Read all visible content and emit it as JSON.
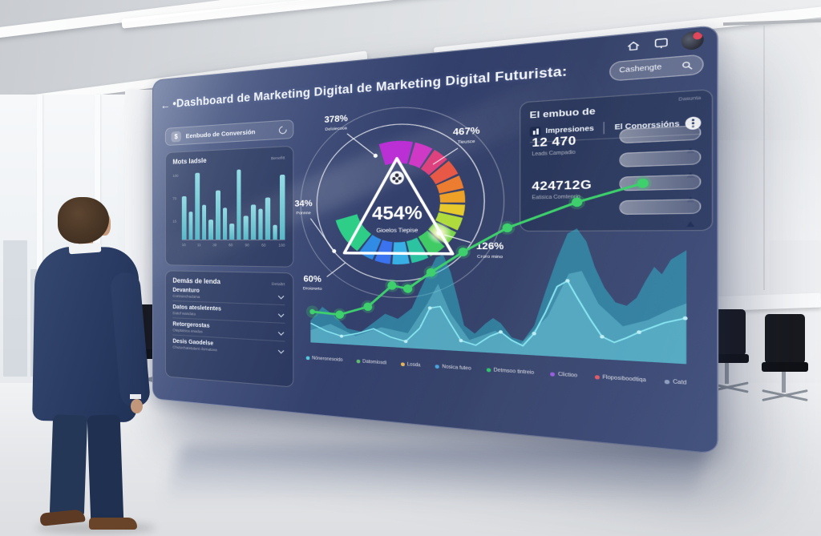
{
  "panel": {
    "topbar": {
      "back_glyph": "←",
      "title": "•Dashboard de Marketing Digital de Marketing Digital Futurista:",
      "search": {
        "value": "Cashengte"
      }
    },
    "left": {
      "funnel_button": {
        "icon_glyph": "$",
        "label": "Eenbudo de Conversión"
      },
      "bar_card": {
        "title": "Mots ladsle",
        "meta": "Benefitt",
        "y_ticks": [
          "100",
          "70",
          "15"
        ],
        "x_ticks": [
          "10",
          "11",
          "30",
          "60",
          "90",
          "60",
          "100"
        ],
        "values": [
          62,
          40,
          95,
          50,
          28,
          70,
          45,
          22,
          98,
          33,
          48,
          42,
          58,
          20,
          88
        ],
        "bar_color": "#74d4dc"
      },
      "list_card": {
        "title": "Demás de lenda",
        "meta": "Detaltrt",
        "items": [
          {
            "label": "Devanturo",
            "sub": "Contranchodoma"
          },
          {
            "label": "Datos atesletentes",
            "sub": "Datof wandata"
          },
          {
            "label": "Retorgerostas",
            "sub": "Oteptatsca enadas"
          },
          {
            "label": "Desis Gaodelse",
            "sub": "Chutechatetatent dornatava"
          }
        ]
      }
    },
    "gauge": {
      "center_value": "454%",
      "center_label": "Gioelos Tiepise",
      "callouts": {
        "top_left": {
          "value": "378%",
          "label": "Deloiecooa"
        },
        "top_right": {
          "value": "467%",
          "label": "Tieusce"
        },
        "left": {
          "value": "34%",
          "label": "Ponnne"
        },
        "bottom_left": {
          "value": "60%",
          "label": "Droiorerto"
        },
        "right": {
          "value": "126%",
          "label": "Croro mino"
        }
      },
      "segments": [
        {
          "start": -16,
          "end": 14,
          "color": "#bf2fd9"
        },
        {
          "start": 16,
          "end": 32,
          "color": "#d438c9"
        },
        {
          "start": 34,
          "end": 48,
          "color": "#e4427f"
        },
        {
          "start": 50,
          "end": 64,
          "color": "#ef5a45"
        },
        {
          "start": 66,
          "end": 78,
          "color": "#f4802e"
        },
        {
          "start": 80,
          "end": 91,
          "color": "#f5a623"
        },
        {
          "start": 93,
          "end": 103,
          "color": "#eecf2b"
        },
        {
          "start": 105,
          "end": 117,
          "color": "#b5e23b"
        },
        {
          "start": 119,
          "end": 133,
          "color": "#7edc4a"
        },
        {
          "start": 135,
          "end": 150,
          "color": "#41d164"
        },
        {
          "start": 152,
          "end": 167,
          "color": "#2cc9a2"
        },
        {
          "start": 169,
          "end": 184,
          "color": "#38b5ea"
        },
        {
          "start": 186,
          "end": 200,
          "color": "#3a76f2"
        },
        {
          "start": 202,
          "end": 216,
          "color": "#2f8fe8"
        },
        {
          "start": 218,
          "end": 254,
          "color": "#2ed489"
        }
      ]
    },
    "funnel_card": {
      "meta": "Dasunta",
      "title": "El embuo de",
      "tab_impressions": "Impresiones",
      "tab_conversions": "El Conorssións",
      "stats": [
        {
          "value": "12 470",
          "label": "Leads Campadio"
        },
        {
          "value": "424712G",
          "label": "Eatisica Comtenrio"
        }
      ],
      "bars_count": 4
    },
    "trend": {
      "baseline": 175,
      "colors": {
        "area_back": "#2fb9cf",
        "area_mid": "#7fdbe8",
        "line_front": "#8ae6f2",
        "green": "#3ed06c"
      },
      "area_back": [
        [
          5,
          150
        ],
        [
          18,
          134
        ],
        [
          32,
          144
        ],
        [
          45,
          157
        ],
        [
          60,
          160
        ],
        [
          72,
          150
        ],
        [
          85,
          139
        ],
        [
          98,
          144
        ],
        [
          112,
          132
        ],
        [
          125,
          101
        ],
        [
          136,
          77
        ],
        [
          143,
          74
        ],
        [
          150,
          92
        ],
        [
          157,
          121
        ],
        [
          163,
          148
        ],
        [
          173,
          156
        ],
        [
          183,
          145
        ],
        [
          190,
          139
        ],
        [
          197,
          144
        ],
        [
          207,
          158
        ],
        [
          217,
          161
        ],
        [
          227,
          145
        ],
        [
          237,
          110
        ],
        [
          247,
          77
        ],
        [
          256,
          52
        ],
        [
          264,
          47
        ],
        [
          272,
          60
        ],
        [
          279,
          85
        ],
        [
          287,
          105
        ],
        [
          296,
          119
        ],
        [
          305,
          122
        ],
        [
          313,
          114
        ],
        [
          320,
          98
        ],
        [
          327,
          84
        ],
        [
          333,
          91
        ],
        [
          340,
          77
        ],
        [
          352,
          68
        ]
      ],
      "area_mid": [
        [
          5,
          161
        ],
        [
          27,
          153
        ],
        [
          54,
          165
        ],
        [
          81,
          154
        ],
        [
          108,
          159
        ],
        [
          127,
          127
        ],
        [
          138,
          105
        ],
        [
          150,
          136
        ],
        [
          168,
          163
        ],
        [
          192,
          152
        ],
        [
          215,
          164
        ],
        [
          239,
          135
        ],
        [
          257,
          92
        ],
        [
          268,
          89
        ],
        [
          282,
          121
        ],
        [
          302,
          142
        ],
        [
          322,
          135
        ],
        [
          340,
          124
        ],
        [
          352,
          118
        ]
      ],
      "line_front": [
        [
          5,
          153
        ],
        [
          22,
          161
        ],
        [
          39,
          166
        ],
        [
          56,
          162
        ],
        [
          73,
          156
        ],
        [
          90,
          164
        ],
        [
          106,
          168
        ],
        [
          120,
          153
        ],
        [
          130,
          131
        ],
        [
          140,
          129
        ],
        [
          150,
          147
        ],
        [
          160,
          164
        ],
        [
          174,
          168
        ],
        [
          187,
          158
        ],
        [
          197,
          153
        ],
        [
          207,
          161
        ],
        [
          217,
          166
        ],
        [
          227,
          153
        ],
        [
          237,
          131
        ],
        [
          247,
          105
        ],
        [
          256,
          99
        ],
        [
          264,
          115
        ],
        [
          275,
          136
        ],
        [
          285,
          153
        ],
        [
          295,
          158
        ],
        [
          305,
          153
        ],
        [
          315,
          147
        ],
        [
          325,
          142
        ],
        [
          335,
          137
        ],
        [
          351,
          132
        ]
      ],
      "line_dot_indices": [
        2,
        6,
        8,
        11,
        14,
        17,
        20,
        23,
        26,
        29
      ],
      "green_line": [
        [
          7,
          140
        ],
        [
          37,
          142
        ],
        [
          67,
          132
        ],
        [
          92,
          108
        ],
        [
          108,
          111
        ],
        [
          131,
          93
        ],
        [
          162,
          71
        ],
        [
          203,
          46
        ],
        [
          264,
          21
        ],
        [
          318,
          4
        ]
      ]
    },
    "legend": {
      "items": [
        {
          "label": "Nóneronesoido",
          "color": "#56c8dc"
        },
        {
          "label": "Datomiosdi",
          "color": "#5fbf6d"
        },
        {
          "label": "Losda",
          "color": "#e6b45b"
        },
        {
          "label": "Nosica futeo",
          "color": "#4aa3dd"
        },
        {
          "label": "Detmsoo tintreio",
          "color": "#2fc56f"
        },
        {
          "label": "Clictioo",
          "color": "#9a5fe0"
        },
        {
          "label": "Floposiboodtiqa",
          "color": "#e05c68"
        },
        {
          "label": "Catd",
          "color": "#8e9fbd"
        }
      ]
    }
  }
}
